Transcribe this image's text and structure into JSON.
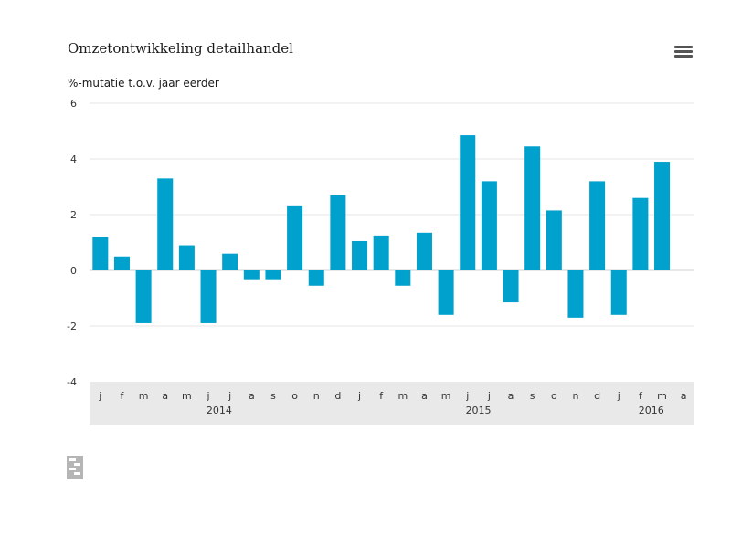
{
  "title": "Omzetontwikkeling detailhandel",
  "subtitle": "%-mutatie t.o.v. jaar eerder",
  "menu_icon": "hamburger-menu-icon",
  "logo_icon": "cbs-logo-icon",
  "colors": {
    "bar": "#00a1cd",
    "axis_band": "#e9e9e9",
    "grid": "#e6e6e6",
    "zero_line": "#cfcfcf"
  },
  "chart_data": {
    "type": "bar",
    "title": "Omzetontwikkeling detailhandel",
    "ylabel": "%-mutatie t.o.v. jaar eerder",
    "xlabel": "",
    "ylim": [
      -4,
      6
    ],
    "yticks": [
      6,
      4,
      2,
      0,
      -2,
      -4
    ],
    "grid": true,
    "categories": [
      "j",
      "f",
      "m",
      "a",
      "m",
      "j",
      "j",
      "a",
      "s",
      "o",
      "n",
      "d",
      "j",
      "f",
      "m",
      "a",
      "m",
      "j",
      "j",
      "a",
      "s",
      "o",
      "n",
      "d",
      "j",
      "f",
      "m",
      "a"
    ],
    "values": [
      1.2,
      0.5,
      -1.9,
      3.3,
      0.9,
      -1.9,
      0.6,
      -0.35,
      -0.35,
      2.3,
      -0.55,
      2.7,
      1.05,
      1.25,
      -0.55,
      1.35,
      -1.6,
      4.85,
      3.2,
      -1.15,
      4.45,
      2.15,
      -1.7,
      3.2,
      -1.6,
      2.6,
      3.9,
      null
    ],
    "year_labels": [
      {
        "label": "2014",
        "index": 5.5
      },
      {
        "label": "2015",
        "index": 17.5
      },
      {
        "label": "2016",
        "index": 25.5
      }
    ]
  }
}
